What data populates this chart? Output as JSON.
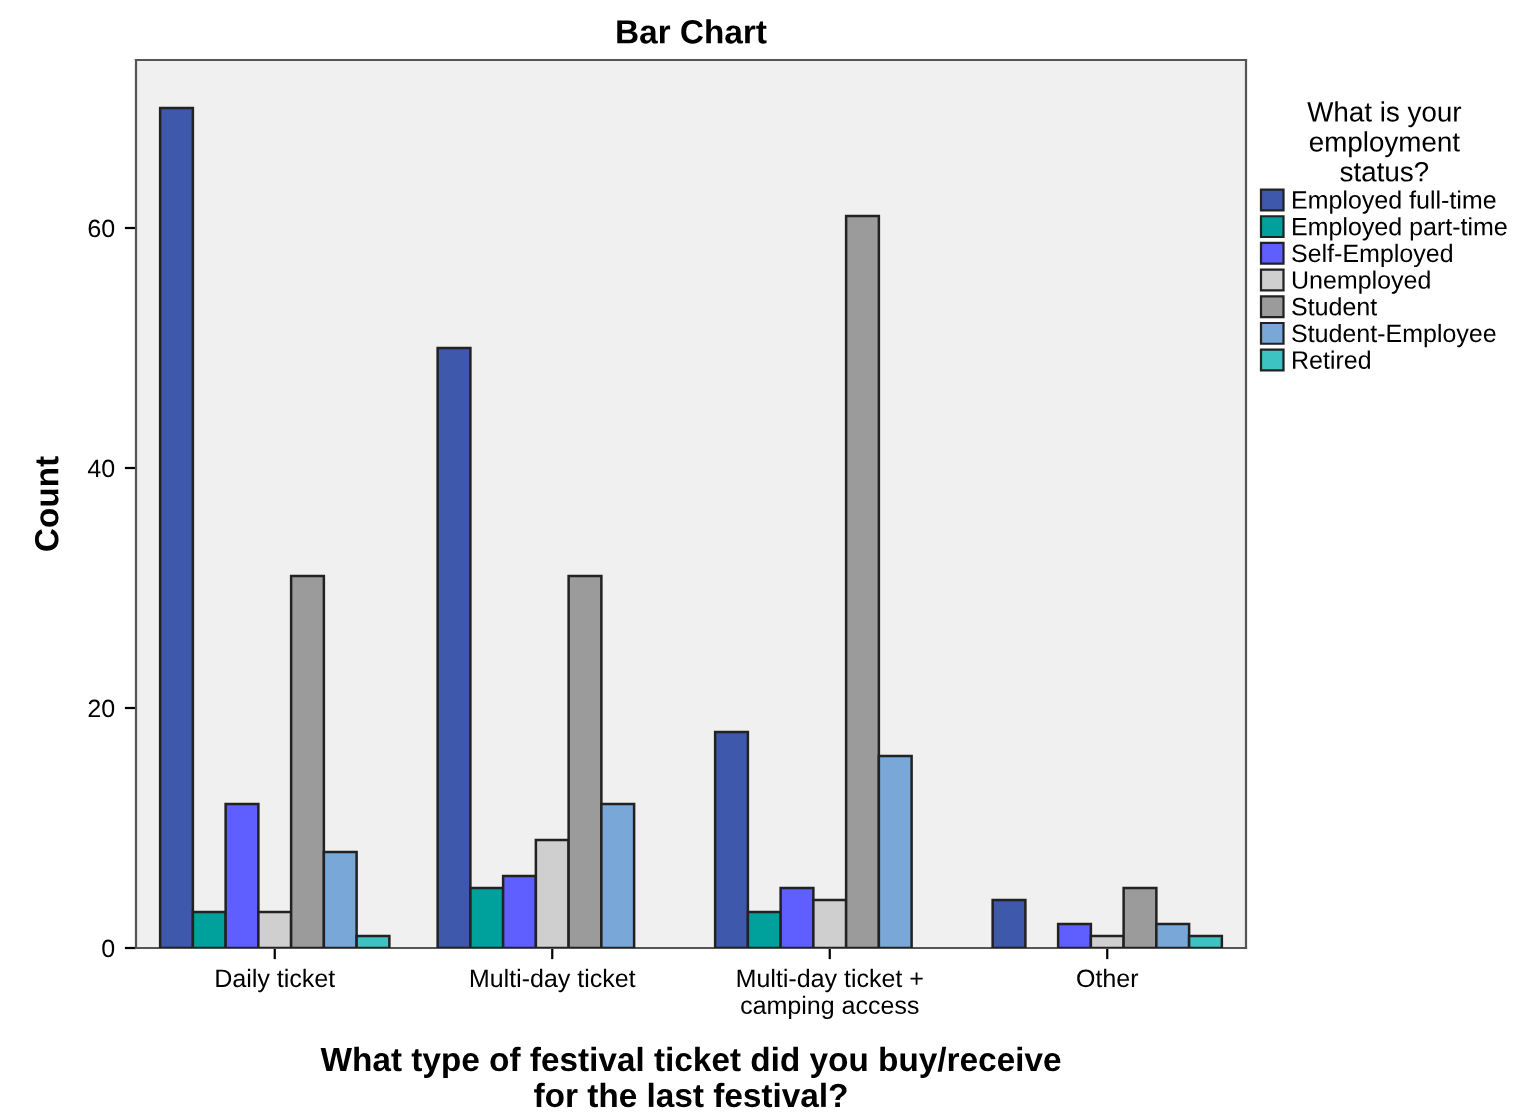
{
  "chart_data": {
    "type": "bar",
    "title": "Bar Chart",
    "xlabel": "What type of festival ticket did you buy/receive for the last festival?",
    "ylabel": "Count",
    "legend_title": "What is your employment status?",
    "categories": [
      "Daily ticket",
      "Multi-day ticket",
      "Multi-day ticket + camping access",
      "Other"
    ],
    "series": [
      {
        "name": "Employed full-time",
        "color": "#3e58ac",
        "values": [
          70,
          50,
          18,
          4
        ]
      },
      {
        "name": "Employed part-time",
        "color": "#00a19c",
        "values": [
          3,
          5,
          3,
          null
        ]
      },
      {
        "name": "Self-Employed",
        "color": "#5f5fff",
        "values": [
          12,
          6,
          5,
          2
        ]
      },
      {
        "name": "Unemployed",
        "color": "#cfcfcf",
        "values": [
          3,
          9,
          4,
          1
        ]
      },
      {
        "name": "Student",
        "color": "#9b9b9b",
        "values": [
          31,
          31,
          61,
          5
        ]
      },
      {
        "name": "Student-Employee",
        "color": "#79a8d8",
        "values": [
          8,
          12,
          16,
          2
        ]
      },
      {
        "name": "Retired",
        "color": "#3ec3c3",
        "values": [
          1,
          null,
          null,
          1
        ]
      }
    ],
    "ylim": [
      0,
      74
    ],
    "yticks": [
      0,
      20,
      40,
      60
    ],
    "grid": false,
    "legend": "right"
  }
}
